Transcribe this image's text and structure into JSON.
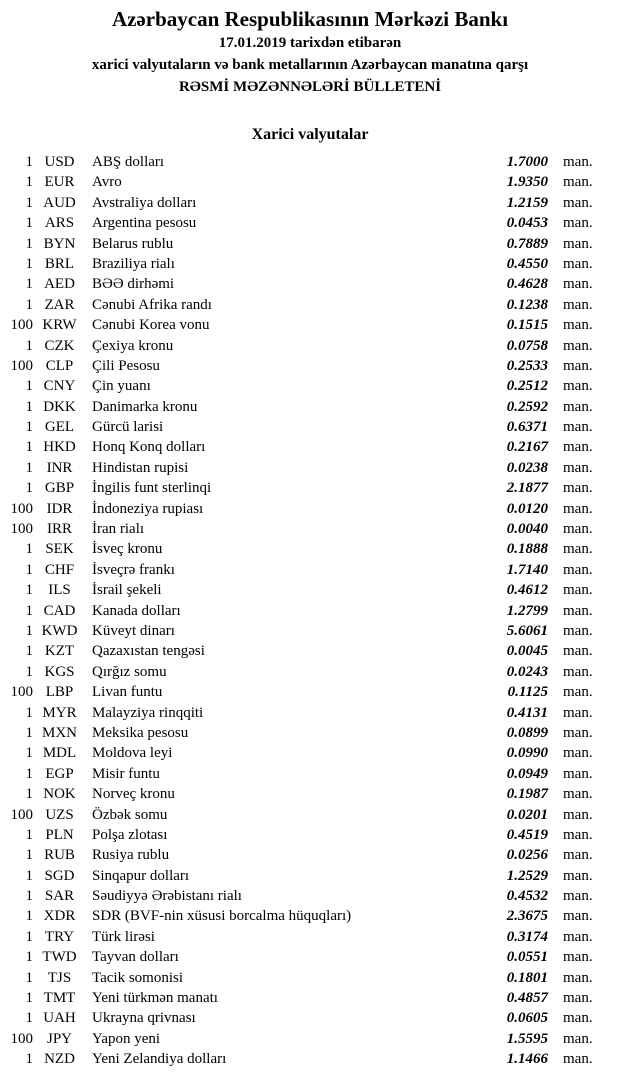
{
  "header": {
    "title": "Azərbaycan Respublikasının Mərkəzi Bankı",
    "date_line": "17.01.2019 tarixdən etibarən",
    "subtitle_line": "xarici valyutaların və bank metallarının Azərbaycan manatına qarşı",
    "bulletin_line": "RƏSMİ MƏZƏNNƏLƏRİ BÜLLETENİ"
  },
  "section": {
    "title": "Xarici valyutalar"
  },
  "unit_suffix": "man.",
  "colors": {
    "background": "#ffffff",
    "text": "#000000"
  },
  "rates": [
    {
      "qty": "1",
      "code": "USD",
      "name": "ABŞ dolları",
      "rate": "1.7000"
    },
    {
      "qty": "1",
      "code": "EUR",
      "name": "Avro",
      "rate": "1.9350"
    },
    {
      "qty": "1",
      "code": "AUD",
      "name": "Avstraliya dolları",
      "rate": "1.2159"
    },
    {
      "qty": "1",
      "code": "ARS",
      "name": "Argentina pesosu",
      "rate": "0.0453"
    },
    {
      "qty": "1",
      "code": "BYN",
      "name": "Belarus rublu",
      "rate": "0.7889"
    },
    {
      "qty": "1",
      "code": "BRL",
      "name": "Braziliya rialı",
      "rate": "0.4550"
    },
    {
      "qty": "1",
      "code": "AED",
      "name": "BƏƏ dirhəmi",
      "rate": "0.4628"
    },
    {
      "qty": "1",
      "code": "ZAR",
      "name": "Cənubi Afrika randı",
      "rate": "0.1238"
    },
    {
      "qty": "100",
      "code": "KRW",
      "name": "Cənubi Korea vonu",
      "rate": "0.1515"
    },
    {
      "qty": "1",
      "code": "CZK",
      "name": "Çexiya kronu",
      "rate": "0.0758"
    },
    {
      "qty": "100",
      "code": "CLP",
      "name": "Çili Pesosu",
      "rate": "0.2533"
    },
    {
      "qty": "1",
      "code": "CNY",
      "name": "Çin yuanı",
      "rate": "0.2512"
    },
    {
      "qty": "1",
      "code": "DKK",
      "name": "Danimarka kronu",
      "rate": "0.2592"
    },
    {
      "qty": "1",
      "code": "GEL",
      "name": "Gürcü larisi",
      "rate": "0.6371"
    },
    {
      "qty": "1",
      "code": "HKD",
      "name": "Honq Konq dolları",
      "rate": "0.2167"
    },
    {
      "qty": "1",
      "code": "INR",
      "name": "Hindistan rupisi",
      "rate": "0.0238"
    },
    {
      "qty": "1",
      "code": "GBP",
      "name": "İngilis funt sterlinqi",
      "rate": "2.1877"
    },
    {
      "qty": "100",
      "code": "IDR",
      "name": "İndoneziya rupiası",
      "rate": "0.0120"
    },
    {
      "qty": "100",
      "code": "IRR",
      "name": "İran rialı",
      "rate": "0.0040"
    },
    {
      "qty": "1",
      "code": "SEK",
      "name": "İsveç kronu",
      "rate": "0.1888"
    },
    {
      "qty": "1",
      "code": "CHF",
      "name": "İsveçrə frankı",
      "rate": "1.7140"
    },
    {
      "qty": "1",
      "code": "ILS",
      "name": "İsrail şekeli",
      "rate": "0.4612"
    },
    {
      "qty": "1",
      "code": "CAD",
      "name": "Kanada dolları",
      "rate": "1.2799"
    },
    {
      "qty": "1",
      "code": "KWD",
      "name": "Küveyt dinarı",
      "rate": "5.6061"
    },
    {
      "qty": "1",
      "code": "KZT",
      "name": "Qazaxıstan tengəsi",
      "rate": "0.0045"
    },
    {
      "qty": "1",
      "code": "KGS",
      "name": "Qırğız somu",
      "rate": "0.0243"
    },
    {
      "qty": "100",
      "code": "LBP",
      "name": "Livan funtu",
      "rate": "0.1125"
    },
    {
      "qty": "1",
      "code": "MYR",
      "name": "Malayziya rinqqiti",
      "rate": "0.4131"
    },
    {
      "qty": "1",
      "code": "MXN",
      "name": "Meksika pesosu",
      "rate": "0.0899"
    },
    {
      "qty": "1",
      "code": "MDL",
      "name": "Moldova leyi",
      "rate": "0.0990"
    },
    {
      "qty": "1",
      "code": "EGP",
      "name": "Misir funtu",
      "rate": "0.0949"
    },
    {
      "qty": "1",
      "code": "NOK",
      "name": "Norveç kronu",
      "rate": "0.1987"
    },
    {
      "qty": "100",
      "code": "UZS",
      "name": "Özbək somu",
      "rate": "0.0201"
    },
    {
      "qty": "1",
      "code": "PLN",
      "name": "Polşa zlotası",
      "rate": "0.4519"
    },
    {
      "qty": "1",
      "code": "RUB",
      "name": "Rusiya rublu",
      "rate": "0.0256"
    },
    {
      "qty": "1",
      "code": "SGD",
      "name": "Sinqapur dolları",
      "rate": "1.2529"
    },
    {
      "qty": "1",
      "code": "SAR",
      "name": "Səudiyyə Ərəbistanı rialı",
      "rate": "0.4532"
    },
    {
      "qty": "1",
      "code": "XDR",
      "name": "SDR (BVF-nin xüsusi borcalma hüquqları)",
      "rate": "2.3675"
    },
    {
      "qty": "1",
      "code": "TRY",
      "name": "Türk lirəsi",
      "rate": "0.3174"
    },
    {
      "qty": "1",
      "code": "TWD",
      "name": "Tayvan dolları",
      "rate": "0.0551"
    },
    {
      "qty": "1",
      "code": "TJS",
      "name": "Tacik somonisi",
      "rate": "0.1801"
    },
    {
      "qty": "1",
      "code": "TMT",
      "name": "Yeni türkmən manatı",
      "rate": "0.4857"
    },
    {
      "qty": "1",
      "code": "UAH",
      "name": "Ukrayna qrivnası",
      "rate": "0.0605"
    },
    {
      "qty": "100",
      "code": "JPY",
      "name": "Yapon yeni",
      "rate": "1.5595"
    },
    {
      "qty": "1",
      "code": "NZD",
      "name": "Yeni Zelandiya dolları",
      "rate": "1.1466"
    }
  ]
}
